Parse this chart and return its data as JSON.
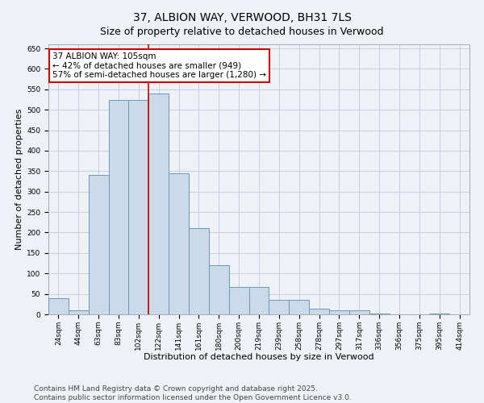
{
  "title": "37, ALBION WAY, VERWOOD, BH31 7LS",
  "subtitle": "Size of property relative to detached houses in Verwood",
  "xlabel": "Distribution of detached houses by size in Verwood",
  "ylabel": "Number of detached properties",
  "categories": [
    "24sqm",
    "44sqm",
    "63sqm",
    "83sqm",
    "102sqm",
    "122sqm",
    "141sqm",
    "161sqm",
    "180sqm",
    "200sqm",
    "219sqm",
    "239sqm",
    "258sqm",
    "278sqm",
    "297sqm",
    "317sqm",
    "336sqm",
    "356sqm",
    "375sqm",
    "395sqm",
    "414sqm"
  ],
  "values": [
    40,
    10,
    340,
    525,
    525,
    540,
    345,
    210,
    120,
    67,
    67,
    35,
    35,
    14,
    10,
    10,
    1,
    0,
    0,
    1,
    0
  ],
  "bar_color": "#ccd9e8",
  "bar_edge_color": "#6699bb",
  "vline_index": 5,
  "annotation_text": "37 ALBION WAY: 105sqm\n← 42% of detached houses are smaller (949)\n57% of semi-detached houses are larger (1,280) →",
  "annotation_box_facecolor": "#ffffff",
  "annotation_box_edgecolor": "#cc0000",
  "vline_color": "#cc0000",
  "footer": "Contains HM Land Registry data © Crown copyright and database right 2025.\nContains public sector information licensed under the Open Government Licence v3.0.",
  "ylim": [
    0,
    660
  ],
  "yticks": [
    0,
    50,
    100,
    150,
    200,
    250,
    300,
    350,
    400,
    450,
    500,
    550,
    600,
    650
  ],
  "background_color": "#eef2f7",
  "grid_color": "#c5cfe0",
  "title_fontsize": 10,
  "annot_fontsize": 7.5,
  "tick_fontsize": 6.5,
  "label_fontsize": 8,
  "footer_fontsize": 6.5
}
